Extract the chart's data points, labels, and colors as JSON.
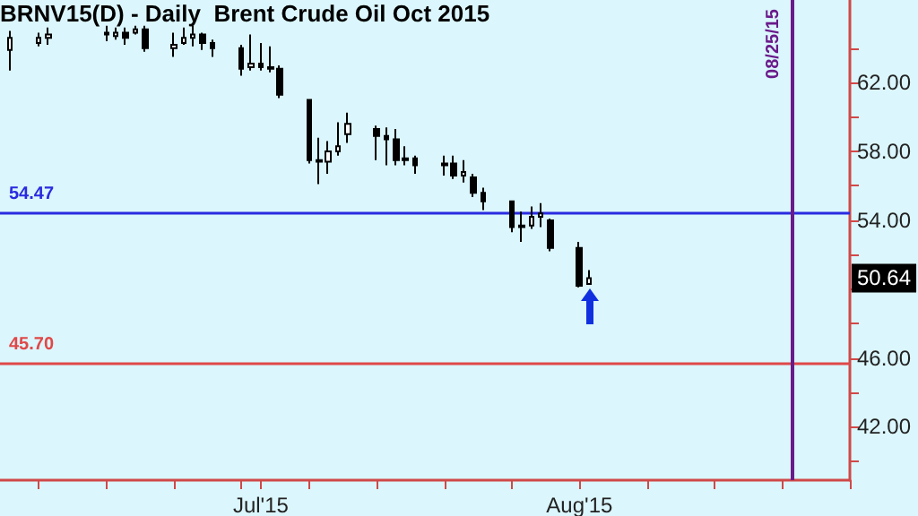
{
  "chart_data": {
    "type": "candlestick",
    "title": "BRNV15(D) - Daily  Brent Crude Oil Oct 2015",
    "x": [
      "2015-06-05",
      "2015-06-08",
      "2015-06-09",
      "2015-06-15",
      "2015-06-16",
      "2015-06-17",
      "2015-06-18",
      "2015-06-19",
      "2015-06-22",
      "2015-06-23",
      "2015-06-24",
      "2015-06-25",
      "2015-06-26",
      "2015-06-29",
      "2015-06-30",
      "2015-07-01",
      "2015-07-02",
      "2015-07-03",
      "2015-07-06",
      "2015-07-07",
      "2015-07-08",
      "2015-07-09",
      "2015-07-10",
      "2015-07-13",
      "2015-07-14",
      "2015-07-15",
      "2015-07-16",
      "2015-07-17",
      "2015-07-20",
      "2015-07-21",
      "2015-07-22",
      "2015-07-23",
      "2015-07-24",
      "2015-07-27",
      "2015-07-28",
      "2015-07-29",
      "2015-07-30",
      "2015-07-31",
      "2015-08-03",
      "2015-08-04"
    ],
    "ohlc": [
      [
        63.9,
        65.0,
        62.7,
        64.6
      ],
      [
        64.3,
        64.9,
        64.1,
        64.6
      ],
      [
        64.6,
        65.2,
        64.2,
        64.8
      ],
      [
        64.8,
        65.3,
        64.4,
        64.9
      ],
      [
        64.7,
        65.2,
        64.5,
        64.9
      ],
      [
        64.9,
        65.2,
        64.2,
        64.6
      ],
      [
        64.9,
        65.3,
        64.8,
        65.1
      ],
      [
        65.1,
        65.3,
        63.8,
        64.0
      ],
      [
        64.0,
        64.9,
        63.5,
        64.2
      ],
      [
        64.3,
        65.2,
        64.2,
        64.6
      ],
      [
        64.6,
        65.3,
        64.1,
        64.8
      ],
      [
        64.8,
        64.9,
        63.9,
        64.3
      ],
      [
        64.3,
        64.5,
        63.5,
        64.0
      ],
      [
        64.0,
        64.2,
        62.4,
        62.8
      ],
      [
        62.9,
        64.8,
        62.7,
        63.1
      ],
      [
        63.1,
        64.3,
        62.7,
        62.9
      ],
      [
        62.9,
        64.1,
        62.6,
        62.8
      ],
      [
        62.8,
        63.0,
        61.1,
        61.3
      ],
      [
        61.0,
        61.0,
        57.3,
        57.5
      ],
      [
        57.5,
        58.8,
        56.1,
        57.4
      ],
      [
        57.4,
        58.6,
        56.7,
        58.0
      ],
      [
        58.0,
        59.7,
        57.75,
        58.3
      ],
      [
        59.0,
        60.25,
        58.5,
        59.6
      ],
      [
        59.3,
        59.5,
        57.5,
        58.9
      ],
      [
        58.9,
        59.4,
        57.2,
        58.7
      ],
      [
        58.7,
        59.3,
        57.2,
        57.5
      ],
      [
        57.5,
        58.3,
        57.2,
        57.6
      ],
      [
        57.6,
        57.75,
        56.7,
        57.2
      ],
      [
        57.2,
        57.75,
        56.6,
        57.3
      ],
      [
        57.3,
        57.75,
        56.4,
        56.6
      ],
      [
        56.6,
        57.5,
        56.2,
        56.8
      ],
      [
        56.5,
        56.7,
        55.35,
        55.6
      ],
      [
        55.6,
        55.9,
        54.6,
        55.1
      ],
      [
        55.1,
        55.1,
        53.3,
        53.6
      ],
      [
        53.6,
        54.5,
        52.75,
        53.7
      ],
      [
        53.7,
        54.8,
        53.5,
        54.2
      ],
      [
        54.2,
        55.0,
        53.6,
        54.4
      ],
      [
        54.0,
        54.1,
        52.2,
        52.4
      ],
      [
        52.4,
        52.75,
        50.1,
        50.2
      ],
      [
        50.3,
        51.1,
        50.25,
        50.64
      ]
    ],
    "color": "#000000",
    "xlim": [
      "2015-06-04",
      "2015-08-31"
    ],
    "xticks": [
      {
        "value": "2015-06-08",
        "label": null
      },
      {
        "value": "2015-06-15",
        "label": null
      },
      {
        "value": "2015-06-22",
        "label": null
      },
      {
        "value": "2015-06-29",
        "label": null
      },
      {
        "value": "2015-07-01",
        "label": "Jul'15"
      },
      {
        "value": "2015-07-06",
        "label": null
      },
      {
        "value": "2015-07-13",
        "label": null
      },
      {
        "value": "2015-07-20",
        "label": null
      },
      {
        "value": "2015-07-27",
        "label": null
      },
      {
        "value": "2015-08-03",
        "label": "Aug'15"
      },
      {
        "value": "2015-08-10",
        "label": null
      },
      {
        "value": "2015-08-17",
        "label": null
      },
      {
        "value": "2015-08-24",
        "label": null
      },
      {
        "value": "2015-08-31",
        "label": null
      }
    ],
    "ylim": [
      38.9,
      66.8
    ],
    "yticks": [
      {
        "value": 40,
        "label": null
      },
      {
        "value": 42,
        "label": "42.00"
      },
      {
        "value": 44,
        "label": null
      },
      {
        "value": 46,
        "label": "46.00"
      },
      {
        "value": 48,
        "label": null
      },
      {
        "value": 50,
        "label": null
      },
      {
        "value": 52,
        "label": null
      },
      {
        "value": 54,
        "label": "54.00"
      },
      {
        "value": 56,
        "label": null
      },
      {
        "value": 58,
        "label": "58.00"
      },
      {
        "value": 60,
        "label": null
      },
      {
        "value": 62,
        "label": "62.00"
      },
      {
        "value": 64,
        "label": null
      }
    ],
    "ref_lines": [
      {
        "axis": "y",
        "value": 54.47,
        "label": "54.47",
        "color": "#2a2ae0"
      },
      {
        "axis": "y",
        "value": 45.7,
        "label": "45.70",
        "color": "#e04848"
      },
      {
        "axis": "x",
        "value": "2015-08-25",
        "label": "08/25/15",
        "color": "#6a1a8a"
      }
    ],
    "annotations": [
      {
        "text": "50.64",
        "y": 50.64
      }
    ],
    "grid": false
  }
}
